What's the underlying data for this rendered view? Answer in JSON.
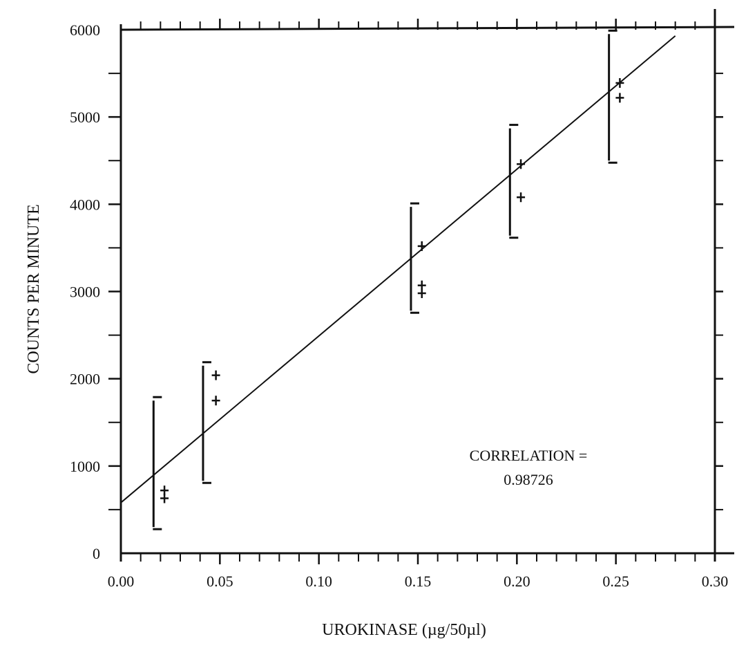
{
  "chart_data": {
    "type": "scatter",
    "title": "",
    "xlabel": "UROKINASE (µg/50µl)",
    "ylabel": "COUNTS PER MINUTE",
    "xlim": [
      0.0,
      0.3
    ],
    "ylim": [
      0,
      6000
    ],
    "x_ticks": [
      0.0,
      0.05,
      0.1,
      0.15,
      0.2,
      0.25,
      0.3
    ],
    "x_tick_labels": [
      "0.00",
      "0.05",
      "0.10",
      "0.15",
      "0.20",
      "0.25",
      "0.30"
    ],
    "y_ticks": [
      0,
      1000,
      2000,
      3000,
      4000,
      5000,
      6000
    ],
    "y_tick_labels": [
      "0",
      "1000",
      "2000",
      "3000",
      "4000",
      "5000",
      "6000"
    ],
    "grid": false,
    "error_bars": [
      {
        "x": 0.0165,
        "low": 300,
        "high": 1750
      },
      {
        "x": 0.0415,
        "low": 830,
        "high": 2150
      },
      {
        "x": 0.1465,
        "low": 2780,
        "high": 3970
      },
      {
        "x": 0.1965,
        "low": 3640,
        "high": 4870
      },
      {
        "x": 0.2465,
        "low": 4500,
        "high": 5950
      }
    ],
    "points": [
      {
        "x": 0.022,
        "y": 720
      },
      {
        "x": 0.022,
        "y": 630
      },
      {
        "x": 0.048,
        "y": 2040
      },
      {
        "x": 0.048,
        "y": 1750
      },
      {
        "x": 0.152,
        "y": 3520
      },
      {
        "x": 0.152,
        "y": 3070
      },
      {
        "x": 0.152,
        "y": 2980
      },
      {
        "x": 0.202,
        "y": 4460
      },
      {
        "x": 0.202,
        "y": 4080
      },
      {
        "x": 0.252,
        "y": 5390
      },
      {
        "x": 0.252,
        "y": 5220
      }
    ],
    "fit_line": {
      "x": [
        0.0,
        0.28
      ],
      "y": [
        580,
        5930
      ]
    },
    "annotation": {
      "line1": "CORRELATION =",
      "line2": "0.98726"
    }
  }
}
